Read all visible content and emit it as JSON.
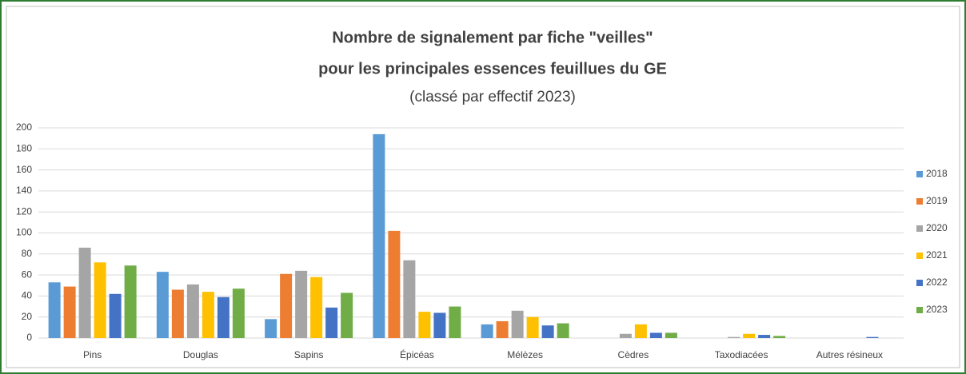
{
  "chart_data": {
    "type": "bar",
    "title": [
      "Nombre de signalement par fiche \"veilles\"",
      "pour les principales essences  feuillues du GE"
    ],
    "subtitle": "(classé par effectif 2023)",
    "categories": [
      "Pins",
      "Douglas",
      "Sapins",
      "Épicéas",
      "Mélèzes",
      "Cèdres",
      "Taxodiacées",
      "Autres résineux"
    ],
    "series": [
      {
        "name": "2018",
        "color": "#5b9bd5",
        "values": [
          53,
          63,
          18,
          194,
          13,
          0,
          0,
          0
        ]
      },
      {
        "name": "2019",
        "color": "#ed7d31",
        "values": [
          49,
          46,
          61,
          102,
          16,
          0,
          0,
          0
        ]
      },
      {
        "name": "2020",
        "color": "#a5a5a5",
        "values": [
          86,
          51,
          64,
          74,
          26,
          4,
          1,
          0
        ]
      },
      {
        "name": "2021",
        "color": "#ffc000",
        "values": [
          72,
          44,
          58,
          25,
          20,
          13,
          4,
          0
        ]
      },
      {
        "name": "2022",
        "color": "#4472c4",
        "values": [
          42,
          39,
          29,
          24,
          12,
          5,
          3,
          1
        ]
      },
      {
        "name": "2023",
        "color": "#70ad47",
        "values": [
          69,
          47,
          43,
          30,
          14,
          5,
          2,
          0
        ]
      }
    ],
    "ylim": [
      0,
      200
    ],
    "yticks": [
      0,
      20,
      40,
      60,
      80,
      100,
      120,
      140,
      160,
      180,
      200
    ],
    "grid": true,
    "legend": "right"
  }
}
